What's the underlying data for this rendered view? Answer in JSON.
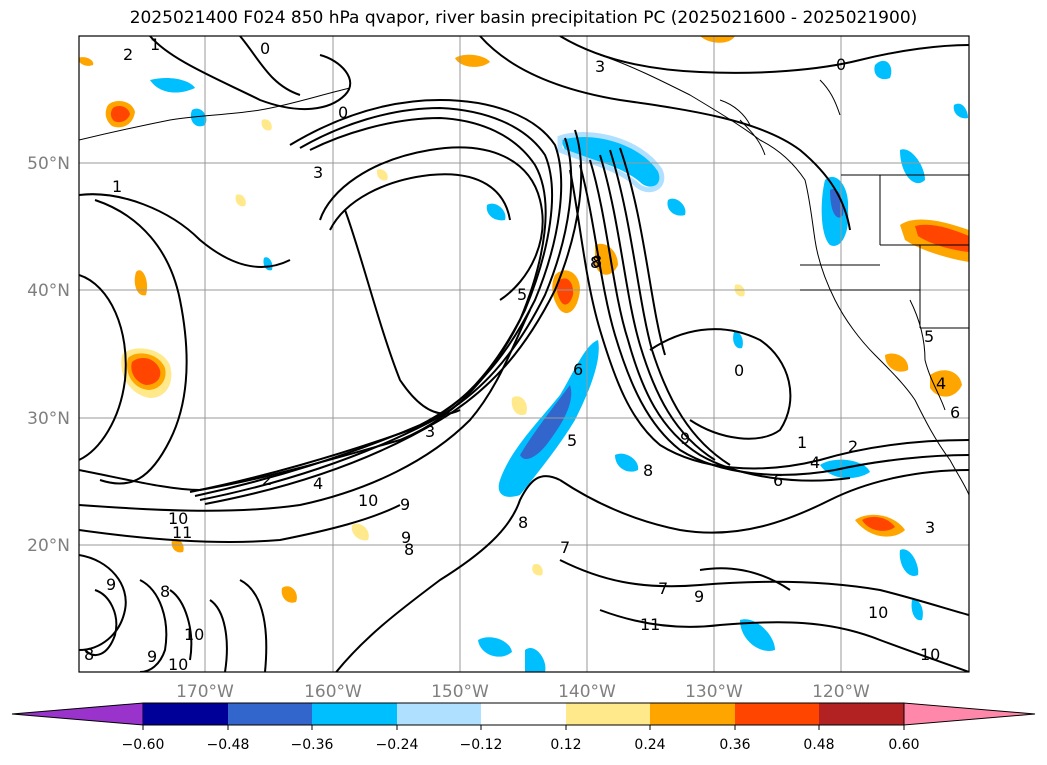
{
  "title": "2025021400 F024 850 hPa qvapor, river basin precipitation PC (2025021600 - 2025021900)",
  "lat_labels": [
    "50°N",
    "40°N",
    "30°N",
    "20°N"
  ],
  "lon_labels": [
    "170°W",
    "160°W",
    "150°W",
    "140°W",
    "130°W",
    "120°W"
  ],
  "colorbar": {
    "tick_labels": [
      "−0.60",
      "−0.48",
      "−0.36",
      "−0.24",
      "−0.12",
      "0.12",
      "0.24",
      "0.36",
      "0.48",
      "0.60"
    ],
    "colors": [
      "#9933cc",
      "#000099",
      "#3366cc",
      "#00bfff",
      "#b0e0ff",
      "#ffffff",
      "#ffe98a",
      "#ffa500",
      "#ff4500",
      "#b22222",
      "#ff88aa"
    ]
  },
  "contour_labels": [
    {
      "text": "1"
    },
    {
      "text": "2"
    },
    {
      "text": "0"
    },
    {
      "text": "3"
    },
    {
      "text": "0"
    },
    {
      "text": "3"
    },
    {
      "text": "1"
    },
    {
      "text": "0"
    },
    {
      "text": "5"
    },
    {
      "text": "8"
    },
    {
      "text": "6"
    },
    {
      "text": "5"
    },
    {
      "text": "0"
    },
    {
      "text": "1"
    },
    {
      "text": "2"
    },
    {
      "text": "4"
    },
    {
      "text": "6"
    },
    {
      "text": "8"
    },
    {
      "text": "9"
    },
    {
      "text": "3"
    },
    {
      "text": "2"
    },
    {
      "text": "4"
    },
    {
      "text": "10"
    },
    {
      "text": "9"
    },
    {
      "text": "10"
    },
    {
      "text": "11"
    },
    {
      "text": "8"
    },
    {
      "text": "9"
    },
    {
      "text": "8"
    },
    {
      "text": "7"
    },
    {
      "text": "7"
    },
    {
      "text": "9"
    },
    {
      "text": "11"
    },
    {
      "text": "10"
    },
    {
      "text": "10"
    },
    {
      "text": "3"
    },
    {
      "text": "8"
    },
    {
      "text": "10"
    },
    {
      "text": "8"
    },
    {
      "text": "9"
    },
    {
      "text": "10"
    },
    {
      "text": "9"
    },
    {
      "text": "5"
    },
    {
      "text": "4"
    },
    {
      "text": "6"
    },
    {
      "text": "8"
    }
  ]
}
